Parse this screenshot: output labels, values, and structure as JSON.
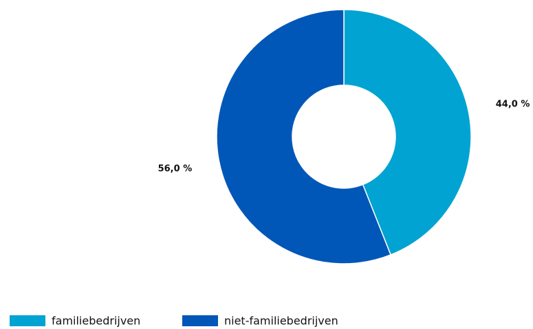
{
  "chart_data": {
    "type": "donut",
    "categories": [
      "familiebedrijven",
      "niet-familiebedrijven"
    ],
    "values": [
      44.0,
      56.0
    ],
    "value_labels": [
      "44,0 %",
      "56,0 %"
    ],
    "colors": [
      "#00a3d1",
      "#0057b7"
    ],
    "legend": "bottom-left"
  }
}
